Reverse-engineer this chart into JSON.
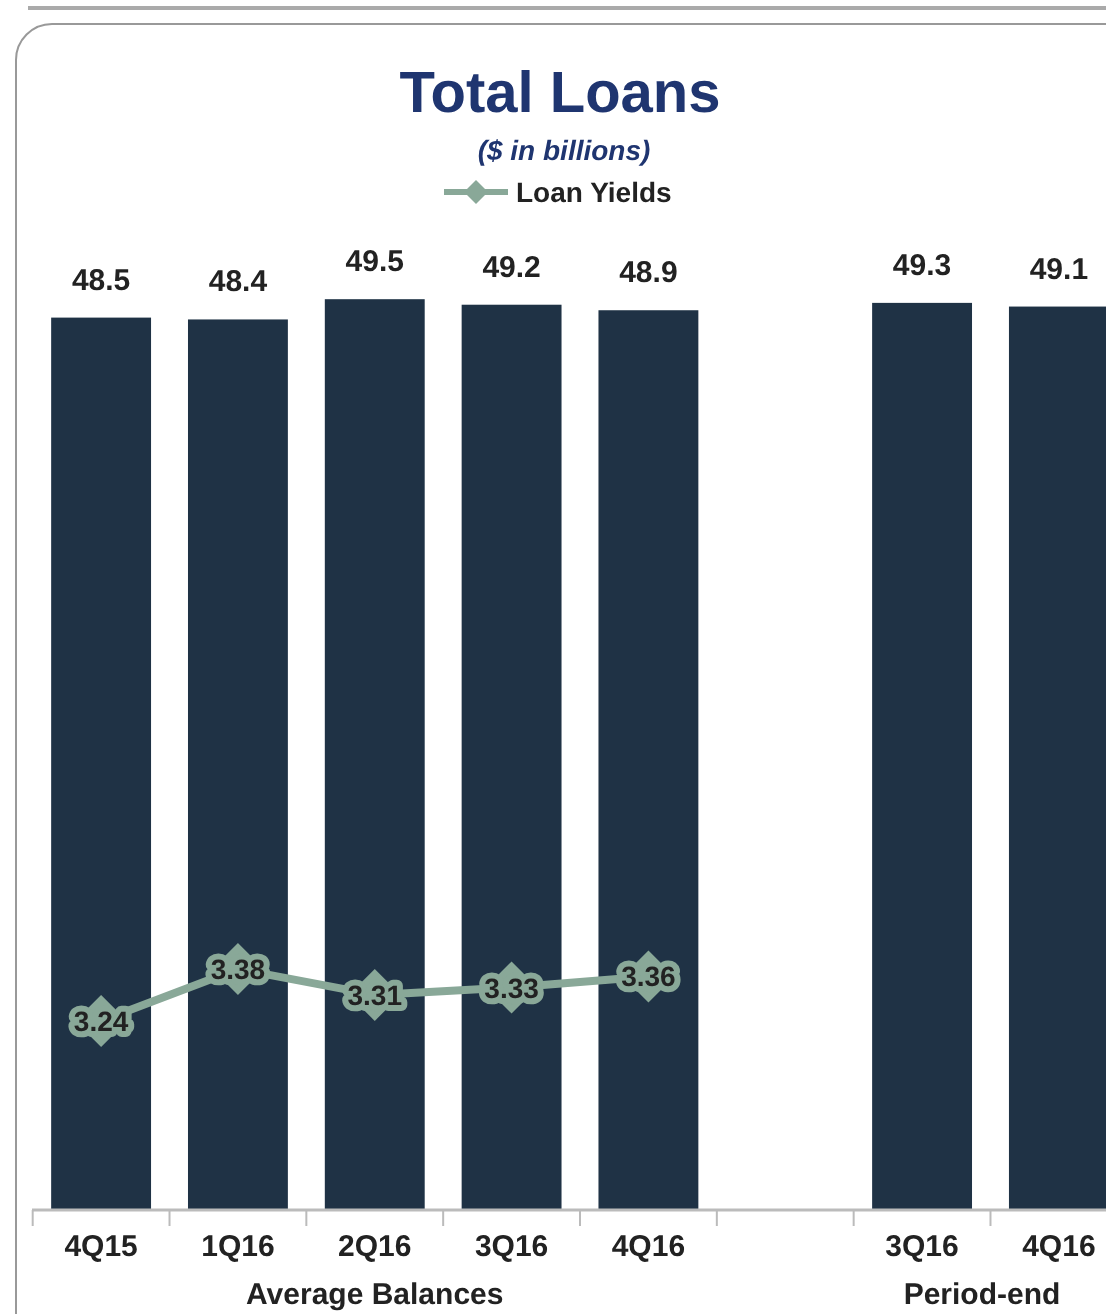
{
  "chart_data": {
    "type": "bar",
    "title": "Total Loans",
    "subtitle": "($ in billions)",
    "categories": [
      "4Q15",
      "1Q16",
      "2Q16",
      "3Q16",
      "4Q16",
      null,
      "3Q16",
      "4Q16"
    ],
    "series": [
      {
        "color": "#1f3245",
        "values": [
          48.5,
          48.4,
          49.5,
          49.2,
          48.9,
          null,
          49.3,
          49.1
        ]
      },
      {
        "type": "line",
        "name": "Loan Yields",
        "color": "#89a898",
        "axis": "y2",
        "marker": "diamond",
        "values": [
          3.24,
          3.38,
          3.31,
          3.33,
          3.36,
          null,
          null,
          null
        ]
      }
    ],
    "tick_labels": "x",
    "data_labels": true,
    "legend": "top",
    "annotations": [
      "Average Balances",
      "Period-end"
    ]
  }
}
